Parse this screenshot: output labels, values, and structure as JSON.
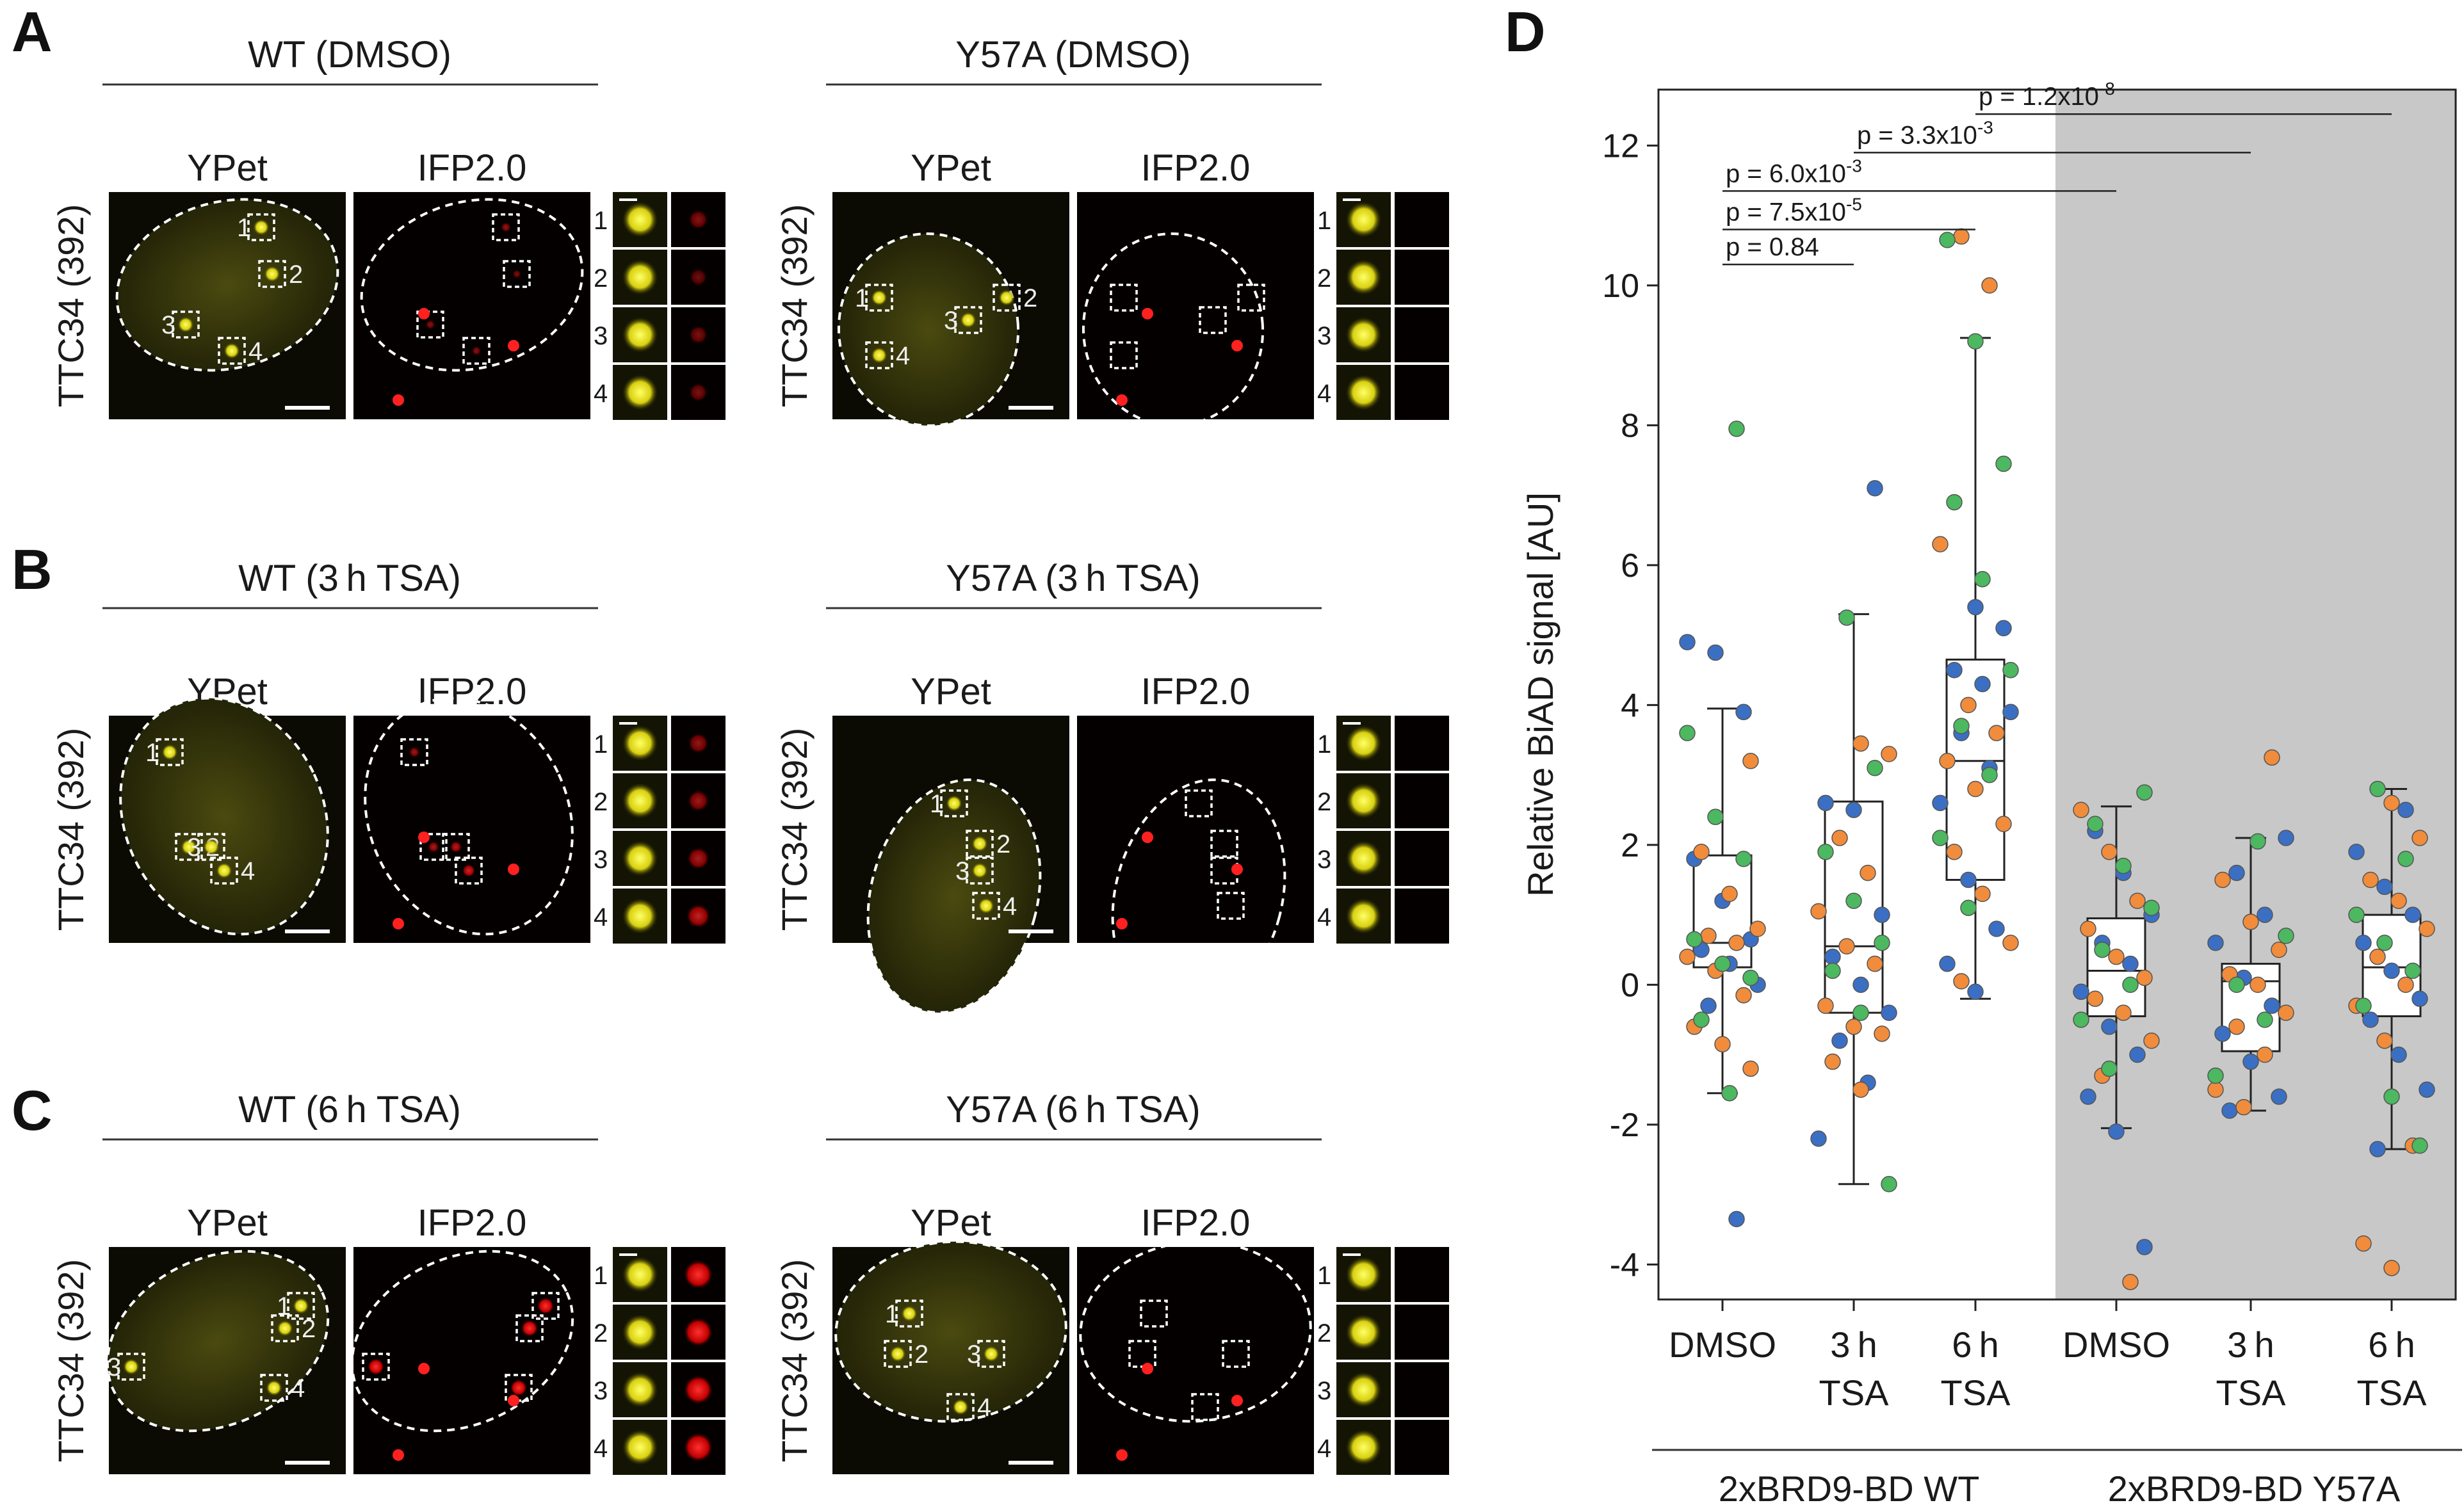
{
  "panels": {
    "A": {
      "letter": "A",
      "rows": [
        {
          "condition": "WT (DMSO)",
          "ypet": "YPet",
          "ifp": "IFP2.0",
          "row_label": "TTC34 (392)",
          "roi_labels": [
            "1",
            "2",
            "3",
            "4"
          ],
          "inset_labels": [
            "1",
            "2",
            "3",
            "4"
          ],
          "ifp_signal": [
            0.35,
            0.25,
            0.3,
            0.3
          ]
        },
        {
          "condition": "Y57A (DMSO)",
          "ypet": "YPet",
          "ifp": "IFP2.0",
          "row_label": "TTC34 (392)",
          "roi_labels": [
            "1",
            "2",
            "3",
            "4"
          ],
          "inset_labels": [
            "1",
            "2",
            "3",
            "4"
          ],
          "ifp_signal": [
            0,
            0,
            0,
            0
          ]
        }
      ]
    },
    "B": {
      "letter": "B",
      "rows": [
        {
          "condition": "WT (3 h TSA)",
          "ypet": "YPet",
          "ifp": "IFP2.0",
          "row_label": "TTC34 (392)",
          "roi_labels": [
            "1",
            "2",
            "3",
            "4"
          ],
          "inset_labels": [
            "1",
            "2",
            "3",
            "4"
          ],
          "ifp_signal": [
            0.4,
            0.45,
            0.5,
            0.6
          ]
        },
        {
          "condition": "Y57A (3 h TSA)",
          "ypet": "YPet",
          "ifp": "IFP2.0",
          "row_label": "TTC34 (392)",
          "roi_labels": [
            "1",
            "2",
            "3",
            "4"
          ],
          "inset_labels": [
            "1",
            "2",
            "3",
            "4"
          ],
          "ifp_signal": [
            0,
            0,
            0,
            0
          ]
        }
      ]
    },
    "C": {
      "letter": "C",
      "rows": [
        {
          "condition": "WT (6 h TSA)",
          "ypet": "YPet",
          "ifp": "IFP2.0",
          "row_label": "TTC34 (392)",
          "roi_labels": [
            "1",
            "2",
            "3",
            "4"
          ],
          "inset_labels": [
            "1",
            "2",
            "3",
            "4"
          ],
          "ifp_signal": [
            0.9,
            0.9,
            0.9,
            0.9
          ]
        },
        {
          "condition": "Y57A (6 h TSA)",
          "ypet": "YPet",
          "ifp": "IFP2.0",
          "row_label": "TTC34 (392)",
          "roi_labels": [
            "1",
            "2",
            "3",
            "4"
          ],
          "inset_labels": [
            "1",
            "2",
            "3",
            "4"
          ],
          "ifp_signal": [
            0,
            0,
            0,
            0
          ]
        }
      ]
    },
    "D": {
      "letter": "D"
    }
  },
  "colors": {
    "ypet": "#e8e020",
    "ifp": "#ff1a1a",
    "series1": "#3b6fc4",
    "series2": "#f08c3c",
    "series3": "#4cb860",
    "shade": "#c8c8c8"
  },
  "chart_data": {
    "type": "box+scatter",
    "ylabel": "Relative BiAD signal [AU]",
    "ylim": [
      -4.5,
      12.8
    ],
    "yticks": [
      -4,
      -2,
      0,
      2,
      4,
      6,
      8,
      10,
      12
    ],
    "categories": [
      "DMSO",
      "3 h\nTSA",
      "6 h\nTSA",
      "DMSO",
      "3 h\nTSA",
      "6 h\nTSA"
    ],
    "groups": [
      {
        "label": "2xBRD9-BD WT",
        "categories": [
          0,
          1,
          2
        ]
      },
      {
        "label": "2xBRD9-BD Y57A",
        "categories": [
          3,
          4,
          5
        ],
        "shaded": true
      }
    ],
    "boxes": [
      {
        "q1": 0.25,
        "median": 0.6,
        "q3": 1.85,
        "whisker_low": -1.55,
        "whisker_high": 3.95
      },
      {
        "q1": -0.4,
        "median": 0.55,
        "q3": 2.62,
        "whisker_low": -2.85,
        "whisker_high": 5.3
      },
      {
        "q1": 1.5,
        "median": 3.2,
        "q3": 4.65,
        "whisker_low": -0.2,
        "whisker_high": 9.25
      },
      {
        "q1": -0.45,
        "median": 0.2,
        "q3": 0.95,
        "whisker_low": -2.05,
        "whisker_high": 2.55
      },
      {
        "q1": -0.95,
        "median": 0.05,
        "q3": 0.3,
        "whisker_low": -1.8,
        "whisker_high": 2.1
      },
      {
        "q1": -0.45,
        "median": 0.25,
        "q3": 1.0,
        "whisker_low": -2.35,
        "whisker_high": 2.8
      }
    ],
    "points": [
      {
        "y": [
          4.9,
          4.75,
          3.95,
          3.9,
          1.8,
          1.2,
          0.8,
          0.65,
          0.6,
          0.5,
          0.4,
          0.3,
          0.2,
          0.1,
          0,
          -0.15,
          -0.3,
          -0.6,
          -3.35
        ],
        "c": [
          1,
          1,
          1,
          1,
          1,
          1,
          1,
          1,
          1,
          1,
          1,
          1,
          1,
          1,
          1,
          1,
          1,
          1,
          1
        ]
      },
      {
        "y": [
          7.1,
          3.4,
          2.6,
          2.5,
          1.6,
          1.0,
          0.6,
          0.4,
          0,
          -0.4,
          -0.8,
          -1.4,
          -2.2,
          -0.15,
          0.3
        ],
        "c": [
          1,
          1,
          1,
          1,
          1,
          1,
          1,
          1,
          1,
          1,
          1,
          1,
          1,
          1,
          1
        ]
      }
    ],
    "points_series1": [
      [
        4.9,
        4.75,
        3.9,
        1.8,
        1.2,
        0.65,
        0.5,
        0.3,
        0,
        -0.3,
        -3.35
      ],
      [
        7.1,
        2.6,
        2.5,
        1.0,
        0.4,
        0,
        -0.4,
        -0.8,
        -1.4,
        -2.2
      ],
      [
        5.4,
        5.1,
        4.5,
        4.3,
        3.9,
        3.6,
        3.1,
        2.6,
        1.5,
        0.8,
        0.3,
        -0.1
      ],
      [
        2.2,
        1.6,
        1.0,
        0.6,
        0.3,
        -0.1,
        -0.6,
        -1.0,
        -1.6,
        -2.1,
        -3.75
      ],
      [
        2.1,
        1.6,
        1.0,
        0.6,
        0.1,
        -0.3,
        -0.7,
        -1.1,
        -1.6,
        -1.8
      ],
      [
        2.5,
        1.9,
        1.4,
        1.0,
        0.6,
        0.2,
        -0.2,
        -0.5,
        -1.0,
        -1.5,
        -2.35
      ]
    ],
    "points_series2": [
      [
        3.2,
        1.9,
        1.3,
        0.8,
        0.7,
        0.6,
        0.4,
        0.2,
        -0.15,
        -0.6,
        -0.85,
        -1.2
      ],
      [
        3.45,
        3.3,
        2.1,
        1.6,
        1.05,
        0.55,
        0.3,
        -0.3,
        -0.6,
        -0.7,
        -1.1,
        -1.5
      ],
      [
        10.7,
        10.0,
        6.3,
        4.0,
        3.6,
        3.2,
        2.8,
        2.3,
        1.9,
        1.3,
        0.6,
        0.05
      ],
      [
        2.5,
        1.9,
        1.2,
        0.8,
        0.4,
        0.1,
        -0.2,
        -0.4,
        -0.8,
        -1.3,
        -4.25
      ],
      [
        3.25,
        1.5,
        0.9,
        0.5,
        0.15,
        0.0,
        -0.4,
        -0.6,
        -1.0,
        -1.5,
        -1.75
      ],
      [
        2.6,
        2.1,
        1.5,
        1.2,
        0.8,
        0.4,
        0.0,
        -0.3,
        -0.8,
        -2.3,
        -3.7,
        -4.05
      ]
    ],
    "points_series3": [
      [
        7.95,
        3.6,
        2.4,
        1.8,
        0.65,
        0.3,
        0.1,
        -0.5,
        -1.55
      ],
      [
        5.25,
        3.1,
        1.9,
        1.2,
        0.6,
        0.2,
        -0.4,
        -2.85
      ],
      [
        10.65,
        9.2,
        7.45,
        6.9,
        5.8,
        4.5,
        3.7,
        3.0,
        2.1,
        1.1
      ],
      [
        2.75,
        2.3,
        1.7,
        1.1,
        0.5,
        0.0,
        -0.5,
        -1.2
      ],
      [
        2.05,
        0.7,
        0.0,
        -0.5,
        -1.3
      ],
      [
        2.8,
        1.8,
        1.0,
        0.6,
        0.2,
        -0.3,
        -1.6,
        -2.3
      ]
    ],
    "pvalues": [
      {
        "label": "p = 0.84",
        "from": 0,
        "to": 1,
        "y": 10.3
      },
      {
        "label": "p = 7.5x10",
        "sup": "-5",
        "from": 0,
        "to": 2,
        "y": 10.8
      },
      {
        "label": "p = 6.0x10",
        "sup": "-3",
        "from": 0,
        "to": 3,
        "y": 11.35
      },
      {
        "label": "p = 3.3x10",
        "sup": "-3",
        "from": 1,
        "to": 4,
        "y": 11.9
      },
      {
        "label": "p = 1.2x10",
        "sup": "-8",
        "from": 2,
        "to": 5,
        "y": 12.45
      }
    ]
  }
}
